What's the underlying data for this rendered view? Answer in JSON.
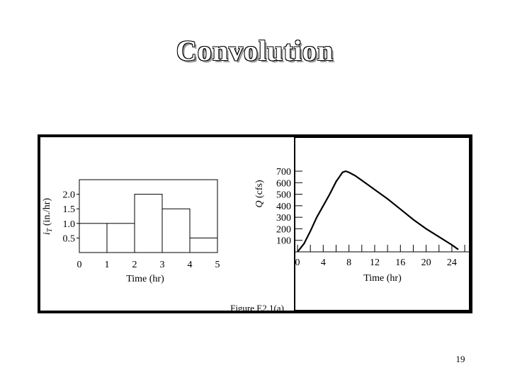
{
  "slide": {
    "title": "Convolution",
    "page_number": "19"
  },
  "figure": {
    "caption": "Figure E2.1(a)"
  },
  "chart_data": [
    {
      "type": "bar",
      "xlabel": "Time (hr)",
      "ylabel": "i_T (in./hr)",
      "ylabel_main": "i",
      "ylabel_sub": "T",
      "ylabel_rest": " (in./hr)",
      "categories": [
        "0-1",
        "1-2",
        "2-3",
        "3-4",
        "4-5"
      ],
      "bin_edges": [
        0,
        1,
        2,
        3,
        4,
        5
      ],
      "values": [
        1.0,
        1.0,
        2.0,
        1.5,
        0.5
      ],
      "xticks": [
        "0",
        "1",
        "2",
        "3",
        "4",
        "5"
      ],
      "yticks": [
        "0.5",
        "1.0",
        "1.5",
        "2.0"
      ],
      "ytick_values": [
        0.5,
        1.0,
        1.5,
        2.0
      ],
      "xlim": [
        0,
        5
      ],
      "ylim": [
        0,
        2.5
      ],
      "grid": false
    },
    {
      "type": "line",
      "xlabel": "Time (hr)",
      "ylabel": "Q (cfs)",
      "ylabel_main": "Q",
      "ylabel_rest": " (cfs)",
      "x": [
        0,
        1,
        2,
        3,
        4,
        5,
        6,
        7,
        7.5,
        8,
        9,
        10,
        11,
        12,
        14,
        16,
        18,
        20,
        22,
        24,
        25
      ],
      "y": [
        0,
        70,
        180,
        300,
        400,
        500,
        610,
        690,
        700,
        690,
        660,
        620,
        580,
        540,
        460,
        370,
        280,
        200,
        130,
        60,
        20
      ],
      "xticks": [
        "0",
        "4",
        "8",
        "12",
        "16",
        "20",
        "24"
      ],
      "xtick_values": [
        0,
        4,
        8,
        12,
        16,
        20,
        24
      ],
      "yticks": [
        "100",
        "200",
        "300",
        "400",
        "500",
        "600",
        "700"
      ],
      "ytick_values": [
        100,
        200,
        300,
        400,
        500,
        600,
        700
      ],
      "xlim": [
        0,
        25
      ],
      "ylim": [
        0,
        700
      ],
      "grid": false
    }
  ]
}
